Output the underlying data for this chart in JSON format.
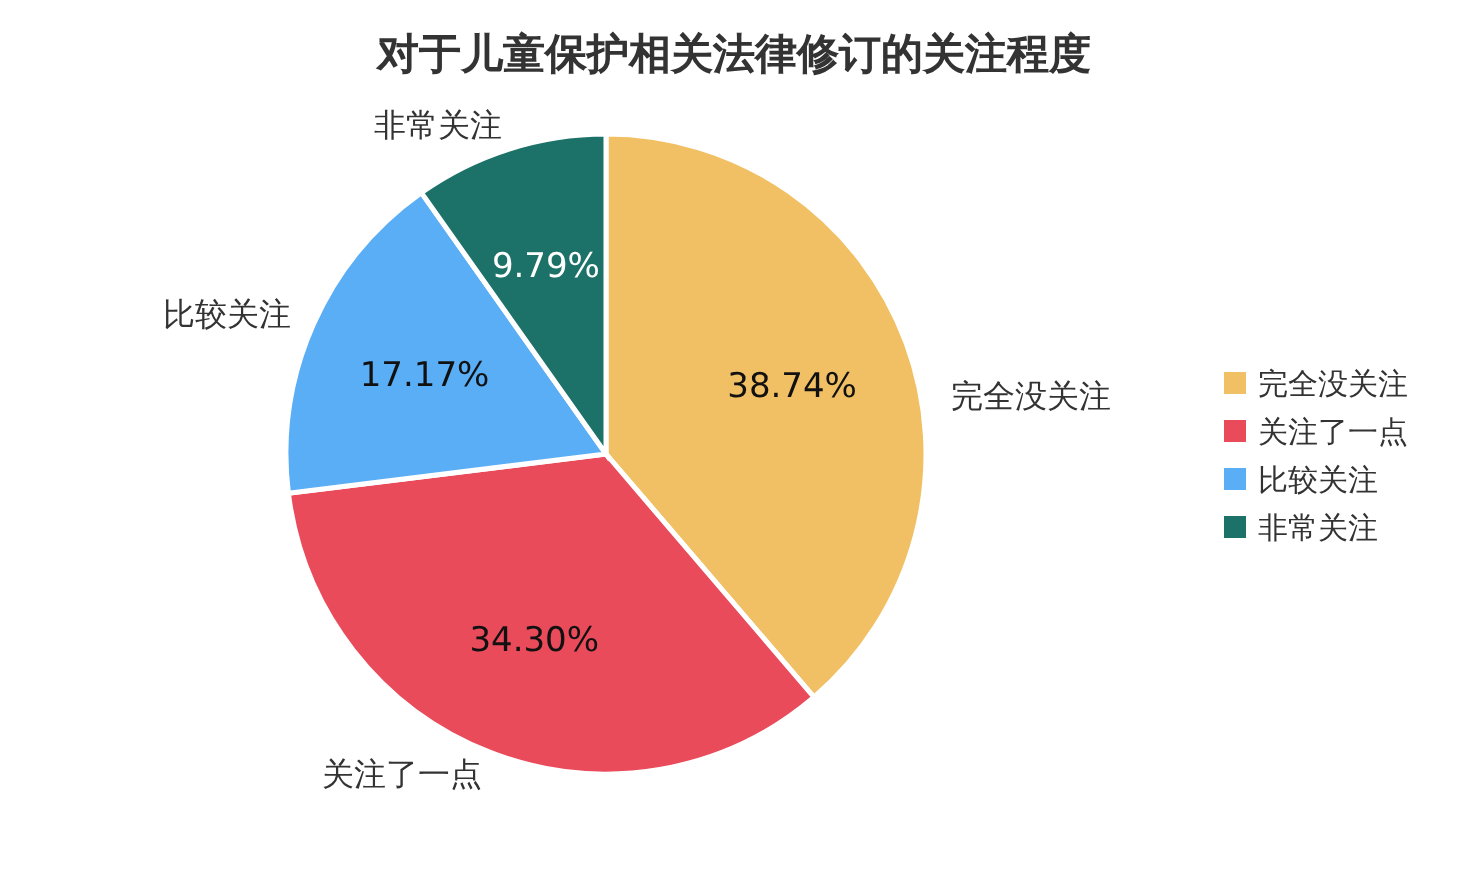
{
  "chart_data": {
    "type": "pie",
    "title": "对于儿童保护相关法律修订的关注程度",
    "categories": [
      "完全没关注",
      "关注了一点",
      "比较关注",
      "非常关注"
    ],
    "values": [
      38.74,
      34.3,
      17.17,
      9.79
    ],
    "colors": [
      "#f2c064",
      "#ea4b5b",
      "#5aaef6",
      "#1c7268"
    ],
    "value_labels": [
      "38.74%",
      "34.30%",
      "17.17%",
      "9.79%"
    ],
    "legend": "right"
  }
}
